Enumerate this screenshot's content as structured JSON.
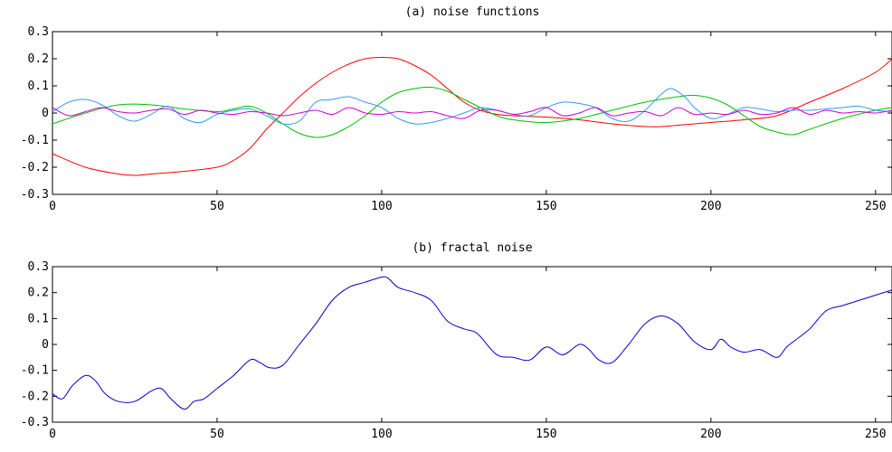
{
  "chart_data": [
    {
      "type": "line",
      "title": "(a) noise functions",
      "xlabel": "",
      "ylabel": "",
      "xlim": [
        0,
        255
      ],
      "ylim": [
        -0.3,
        0.3
      ],
      "xticks": [
        0,
        50,
        100,
        150,
        200,
        250
      ],
      "yticks": [
        0.3,
        0.2,
        0.1,
        0,
        -0.1,
        -0.2,
        -0.3
      ],
      "ytick_labels": [
        "0.3",
        "0.2",
        "0.1",
        "0",
        "-0.1",
        "-0.2",
        "-0.3"
      ],
      "grid": false,
      "series": [
        {
          "color": "#ff0000",
          "x": [
            0,
            10,
            20,
            25,
            30,
            40,
            50,
            55,
            60,
            65,
            70,
            75,
            80,
            85,
            90,
            95,
            100,
            105,
            110,
            115,
            120,
            125,
            130,
            135,
            140,
            150,
            160,
            170,
            180,
            185,
            190,
            200,
            210,
            220,
            230,
            240,
            250,
            255
          ],
          "y": [
            -0.15,
            -0.2,
            -0.225,
            -0.23,
            -0.225,
            -0.215,
            -0.2,
            -0.175,
            -0.13,
            -0.06,
            0.0,
            0.06,
            0.11,
            0.15,
            0.18,
            0.2,
            0.205,
            0.2,
            0.175,
            0.14,
            0.09,
            0.04,
            0.01,
            -0.005,
            -0.01,
            -0.015,
            -0.025,
            -0.04,
            -0.05,
            -0.05,
            -0.045,
            -0.035,
            -0.025,
            -0.01,
            0.04,
            0.09,
            0.15,
            0.2
          ]
        },
        {
          "color": "#00c000",
          "x": [
            0,
            10,
            20,
            30,
            40,
            50,
            55,
            60,
            65,
            70,
            75,
            80,
            85,
            90,
            95,
            100,
            105,
            110,
            115,
            120,
            125,
            130,
            135,
            140,
            150,
            160,
            170,
            180,
            190,
            195,
            200,
            205,
            210,
            215,
            220,
            225,
            230,
            240,
            250,
            255
          ],
          "y": [
            -0.04,
            0.0,
            0.03,
            0.03,
            0.015,
            0.005,
            0.015,
            0.025,
            0.0,
            -0.04,
            -0.075,
            -0.09,
            -0.08,
            -0.05,
            -0.01,
            0.04,
            0.075,
            0.09,
            0.095,
            0.08,
            0.05,
            0.02,
            -0.01,
            -0.025,
            -0.035,
            -0.02,
            0.01,
            0.04,
            0.06,
            0.065,
            0.055,
            0.03,
            -0.01,
            -0.05,
            -0.07,
            -0.08,
            -0.06,
            -0.02,
            0.01,
            0.02
          ]
        },
        {
          "color": "#3399ff",
          "x": [
            0,
            5,
            10,
            15,
            20,
            25,
            30,
            35,
            40,
            45,
            50,
            55,
            60,
            65,
            70,
            75,
            80,
            85,
            90,
            95,
            100,
            105,
            110,
            115,
            120,
            125,
            130,
            135,
            140,
            145,
            150,
            155,
            160,
            165,
            170,
            175,
            180,
            185,
            188,
            192,
            195,
            200,
            205,
            210,
            215,
            220,
            225,
            230,
            235,
            240,
            245,
            250,
            255
          ],
          "y": [
            0.005,
            0.04,
            0.05,
            0.03,
            -0.01,
            -0.03,
            -0.005,
            0.025,
            -0.02,
            -0.035,
            -0.005,
            0.01,
            0.015,
            -0.01,
            -0.04,
            -0.03,
            0.04,
            0.05,
            0.06,
            0.04,
            0.02,
            -0.02,
            -0.04,
            -0.035,
            -0.02,
            0.0,
            0.02,
            0.01,
            -0.005,
            -0.01,
            0.02,
            0.04,
            0.035,
            0.02,
            -0.02,
            -0.03,
            0.01,
            0.07,
            0.09,
            0.06,
            0.02,
            -0.02,
            -0.005,
            0.02,
            0.015,
            0.005,
            0.01,
            0.01,
            0.015,
            0.02,
            0.025,
            0.01,
            0.005
          ]
        },
        {
          "color": "#cc00cc",
          "x": [
            0,
            5,
            10,
            15,
            20,
            25,
            30,
            35,
            40,
            45,
            50,
            55,
            60,
            65,
            70,
            75,
            80,
            85,
            90,
            95,
            100,
            105,
            110,
            115,
            120,
            125,
            130,
            135,
            140,
            145,
            150,
            155,
            160,
            165,
            170,
            175,
            180,
            185,
            190,
            195,
            200,
            205,
            210,
            215,
            220,
            225,
            230,
            235,
            240,
            245,
            250,
            255
          ],
          "y": [
            0.02,
            -0.01,
            0.005,
            0.02,
            0.005,
            0.0,
            0.01,
            0.015,
            -0.005,
            0.01,
            0.0,
            -0.005,
            0.005,
            0.0,
            -0.01,
            0.0,
            0.01,
            -0.005,
            0.02,
            0.0,
            -0.005,
            0.005,
            0.0,
            0.005,
            -0.01,
            -0.02,
            0.01,
            0.01,
            -0.005,
            0.005,
            0.02,
            -0.01,
            0.0,
            0.02,
            -0.01,
            0.0,
            0.005,
            -0.01,
            0.02,
            -0.005,
            0.0,
            -0.005,
            0.01,
            -0.005,
            0.0,
            0.02,
            -0.005,
            0.01,
            0.0,
            0.005,
            0.0,
            0.01
          ]
        }
      ]
    },
    {
      "type": "line",
      "title": "(b) fractal noise",
      "xlabel": "",
      "ylabel": "",
      "xlim": [
        0,
        255
      ],
      "ylim": [
        -0.3,
        0.3
      ],
      "xticks": [
        0,
        50,
        100,
        150,
        200,
        250
      ],
      "yticks": [
        0.3,
        0.2,
        0.1,
        0,
        -0.1,
        -0.2,
        -0.3
      ],
      "ytick_labels": [
        "0.3",
        "0.2",
        "0.1",
        "0",
        "-0.1",
        "-0.2",
        "-0.3"
      ],
      "grid": false,
      "series": [
        {
          "color": "#0000cc",
          "x": [
            0,
            3,
            6,
            10,
            13,
            16,
            20,
            25,
            30,
            33,
            36,
            40,
            43,
            46,
            50,
            55,
            60,
            63,
            66,
            70,
            75,
            80,
            85,
            90,
            95,
            100,
            102,
            105,
            110,
            115,
            120,
            125,
            128,
            130,
            135,
            140,
            145,
            150,
            155,
            160,
            163,
            166,
            170,
            175,
            180,
            185,
            190,
            195,
            200,
            203,
            206,
            210,
            215,
            220,
            223,
            226,
            230,
            235,
            240,
            245,
            250,
            255
          ],
          "y": [
            -0.19,
            -0.21,
            -0.16,
            -0.12,
            -0.14,
            -0.19,
            -0.22,
            -0.22,
            -0.18,
            -0.17,
            -0.21,
            -0.25,
            -0.22,
            -0.21,
            -0.17,
            -0.12,
            -0.06,
            -0.07,
            -0.09,
            -0.08,
            0.0,
            0.08,
            0.17,
            0.22,
            0.24,
            0.26,
            0.255,
            0.22,
            0.2,
            0.17,
            0.09,
            0.06,
            0.05,
            0.03,
            -0.04,
            -0.05,
            -0.06,
            -0.01,
            -0.04,
            0.0,
            -0.02,
            -0.06,
            -0.07,
            0.0,
            0.08,
            0.11,
            0.08,
            0.01,
            -0.02,
            0.02,
            -0.01,
            -0.03,
            -0.02,
            -0.05,
            -0.01,
            0.02,
            0.06,
            0.13,
            0.15,
            0.17,
            0.19,
            0.21
          ]
        }
      ]
    }
  ]
}
